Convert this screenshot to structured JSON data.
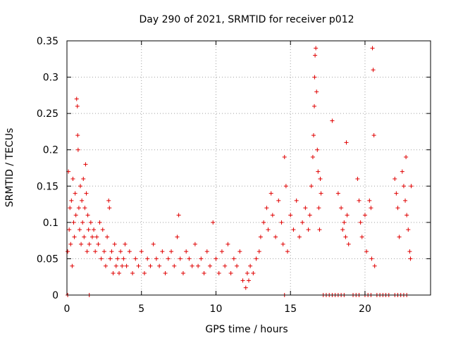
{
  "chart_data": {
    "type": "scatter",
    "title": "Day 290 of 2021, SRMTID for receiver p012",
    "xlabel": "GPS time / hours",
    "ylabel": "SRMTID / TECUs",
    "xlim": [
      0,
      24.4
    ],
    "ylim": [
      0,
      0.35
    ],
    "x_ticks": [
      0,
      5,
      10,
      15,
      20
    ],
    "x_tick_labels": [
      "0",
      "5",
      "10",
      "15",
      "20"
    ],
    "y_ticks": [
      0,
      0.05,
      0.1,
      0.15,
      0.2,
      0.25,
      0.3,
      0.35
    ],
    "y_tick_labels": [
      "0",
      "0.05",
      "0.1",
      "0.15",
      "0.2",
      "0.25",
      "0.3",
      "0.35"
    ],
    "grid": true,
    "marker": "+",
    "series_color": "#e00000",
    "series": [
      {
        "name": "SRMTID",
        "points": [
          [
            0.05,
            0.06
          ],
          [
            0.1,
            0.17
          ],
          [
            0.15,
            0.09
          ],
          [
            0.2,
            0.12
          ],
          [
            0.25,
            0.07
          ],
          [
            0.3,
            0.13
          ],
          [
            0.35,
            0.04
          ],
          [
            0.4,
            0.16
          ],
          [
            0.45,
            0.1
          ],
          [
            0.5,
            0.08
          ],
          [
            0.55,
            0.14
          ],
          [
            0.6,
            0.11
          ],
          [
            0.65,
            0.27
          ],
          [
            0.7,
            0.26
          ],
          [
            0.72,
            0.22
          ],
          [
            0.75,
            0.2
          ],
          [
            0.8,
            0.12
          ],
          [
            0.85,
            0.09
          ],
          [
            0.9,
            0.15
          ],
          [
            0.95,
            0.07
          ],
          [
            1.0,
            0.13
          ],
          [
            1.05,
            0.1
          ],
          [
            1.1,
            0.16
          ],
          [
            1.15,
            0.08
          ],
          [
            1.2,
            0.12
          ],
          [
            1.25,
            0.18
          ],
          [
            1.3,
            0.14
          ],
          [
            1.35,
            0.06
          ],
          [
            1.4,
            0.11
          ],
          [
            1.45,
            0.09
          ],
          [
            1.5,
            0.07
          ],
          [
            1.6,
            0.1
          ],
          [
            1.7,
            0.08
          ],
          [
            1.8,
            0.09
          ],
          [
            1.9,
            0.06
          ],
          [
            2.0,
            0.08
          ],
          [
            2.1,
            0.07
          ],
          [
            2.2,
            0.1
          ],
          [
            2.3,
            0.05
          ],
          [
            2.4,
            0.09
          ],
          [
            2.5,
            0.06
          ],
          [
            2.6,
            0.04
          ],
          [
            2.7,
            0.08
          ],
          [
            2.8,
            0.13
          ],
          [
            2.85,
            0.12
          ],
          [
            2.9,
            0.05
          ],
          [
            3.0,
            0.06
          ],
          [
            3.1,
            0.03
          ],
          [
            3.2,
            0.07
          ],
          [
            3.3,
            0.04
          ],
          [
            3.4,
            0.05
          ],
          [
            3.5,
            0.03
          ],
          [
            3.6,
            0.06
          ],
          [
            3.7,
            0.04
          ],
          [
            3.8,
            0.05
          ],
          [
            3.9,
            0.07
          ],
          [
            4.0,
            0.04
          ],
          [
            4.2,
            0.06
          ],
          [
            4.4,
            0.03
          ],
          [
            4.6,
            0.05
          ],
          [
            4.8,
            0.04
          ],
          [
            5.0,
            0.06
          ],
          [
            5.2,
            0.03
          ],
          [
            5.4,
            0.05
          ],
          [
            5.6,
            0.04
          ],
          [
            5.8,
            0.07
          ],
          [
            6.0,
            0.05
          ],
          [
            6.2,
            0.04
          ],
          [
            6.4,
            0.06
          ],
          [
            6.6,
            0.03
          ],
          [
            6.8,
            0.05
          ],
          [
            7.0,
            0.06
          ],
          [
            7.2,
            0.04
          ],
          [
            7.4,
            0.08
          ],
          [
            7.5,
            0.11
          ],
          [
            7.6,
            0.05
          ],
          [
            7.8,
            0.03
          ],
          [
            8.0,
            0.06
          ],
          [
            8.2,
            0.05
          ],
          [
            8.4,
            0.04
          ],
          [
            8.6,
            0.07
          ],
          [
            8.8,
            0.04
          ],
          [
            9.0,
            0.05
          ],
          [
            9.2,
            0.03
          ],
          [
            9.4,
            0.06
          ],
          [
            9.6,
            0.04
          ],
          [
            9.8,
            0.1
          ],
          [
            10.0,
            0.05
          ],
          [
            10.2,
            0.03
          ],
          [
            10.4,
            0.06
          ],
          [
            10.6,
            0.04
          ],
          [
            10.8,
            0.07
          ],
          [
            11.0,
            0.03
          ],
          [
            11.2,
            0.05
          ],
          [
            11.4,
            0.04
          ],
          [
            11.6,
            0.06
          ],
          [
            11.8,
            0.02
          ],
          [
            12.0,
            0.01
          ],
          [
            12.1,
            0.03
          ],
          [
            12.2,
            0.02
          ],
          [
            12.3,
            0.04
          ],
          [
            12.5,
            0.03
          ],
          [
            12.7,
            0.05
          ],
          [
            12.9,
            0.06
          ],
          [
            13.0,
            0.08
          ],
          [
            13.2,
            0.1
          ],
          [
            13.4,
            0.12
          ],
          [
            13.5,
            0.09
          ],
          [
            13.7,
            0.14
          ],
          [
            13.8,
            0.11
          ],
          [
            14.0,
            0.08
          ],
          [
            14.2,
            0.13
          ],
          [
            14.4,
            0.1
          ],
          [
            14.5,
            0.07
          ],
          [
            14.6,
            0.19
          ],
          [
            14.7,
            0.15
          ],
          [
            14.8,
            0.06
          ],
          [
            15.0,
            0.11
          ],
          [
            15.2,
            0.09
          ],
          [
            15.4,
            0.13
          ],
          [
            15.6,
            0.08
          ],
          [
            15.8,
            0.1
          ],
          [
            16.0,
            0.12
          ],
          [
            16.2,
            0.09
          ],
          [
            16.3,
            0.11
          ],
          [
            16.4,
            0.15
          ],
          [
            16.5,
            0.19
          ],
          [
            16.55,
            0.22
          ],
          [
            16.6,
            0.26
          ],
          [
            16.62,
            0.3
          ],
          [
            16.65,
            0.33
          ],
          [
            16.7,
            0.34
          ],
          [
            16.75,
            0.28
          ],
          [
            16.8,
            0.2
          ],
          [
            16.85,
            0.17
          ],
          [
            16.9,
            0.12
          ],
          [
            16.95,
            0.09
          ],
          [
            17.0,
            0.16
          ],
          [
            17.05,
            0.14
          ],
          [
            17.8,
            0.24
          ],
          [
            18.2,
            0.14
          ],
          [
            18.4,
            0.12
          ],
          [
            18.5,
            0.09
          ],
          [
            18.6,
            0.1
          ],
          [
            18.7,
            0.08
          ],
          [
            18.75,
            0.21
          ],
          [
            18.8,
            0.11
          ],
          [
            18.9,
            0.07
          ],
          [
            19.5,
            0.16
          ],
          [
            19.6,
            0.13
          ],
          [
            19.7,
            0.1
          ],
          [
            19.8,
            0.08
          ],
          [
            20.0,
            0.11
          ],
          [
            20.1,
            0.06
          ],
          [
            20.3,
            0.13
          ],
          [
            20.4,
            0.12
          ],
          [
            20.45,
            0.05
          ],
          [
            20.5,
            0.34
          ],
          [
            20.55,
            0.31
          ],
          [
            20.6,
            0.22
          ],
          [
            20.65,
            0.04
          ],
          [
            22.0,
            0.16
          ],
          [
            22.1,
            0.14
          ],
          [
            22.2,
            0.12
          ],
          [
            22.3,
            0.08
          ],
          [
            22.5,
            0.17
          ],
          [
            22.6,
            0.15
          ],
          [
            22.7,
            0.13
          ],
          [
            22.75,
            0.19
          ],
          [
            22.8,
            0.11
          ],
          [
            22.9,
            0.09
          ],
          [
            23.0,
            0.06
          ],
          [
            23.05,
            0.05
          ],
          [
            23.1,
            0.15
          ],
          [
            0.05,
            0
          ],
          [
            1.5,
            0
          ],
          [
            14.6,
            0
          ],
          [
            17.2,
            0
          ],
          [
            17.4,
            0
          ],
          [
            17.6,
            0
          ],
          [
            17.8,
            0
          ],
          [
            18.0,
            0
          ],
          [
            18.2,
            0
          ],
          [
            18.4,
            0
          ],
          [
            18.6,
            0
          ],
          [
            19.2,
            0
          ],
          [
            19.4,
            0
          ],
          [
            19.6,
            0
          ],
          [
            20.0,
            0
          ],
          [
            20.2,
            0
          ],
          [
            20.4,
            0
          ],
          [
            20.8,
            0
          ],
          [
            21.0,
            0
          ],
          [
            21.2,
            0
          ],
          [
            21.4,
            0
          ],
          [
            21.6,
            0
          ],
          [
            22.0,
            0
          ],
          [
            22.2,
            0
          ],
          [
            22.4,
            0
          ],
          [
            22.6,
            0
          ],
          [
            22.8,
            0
          ]
        ]
      }
    ]
  }
}
